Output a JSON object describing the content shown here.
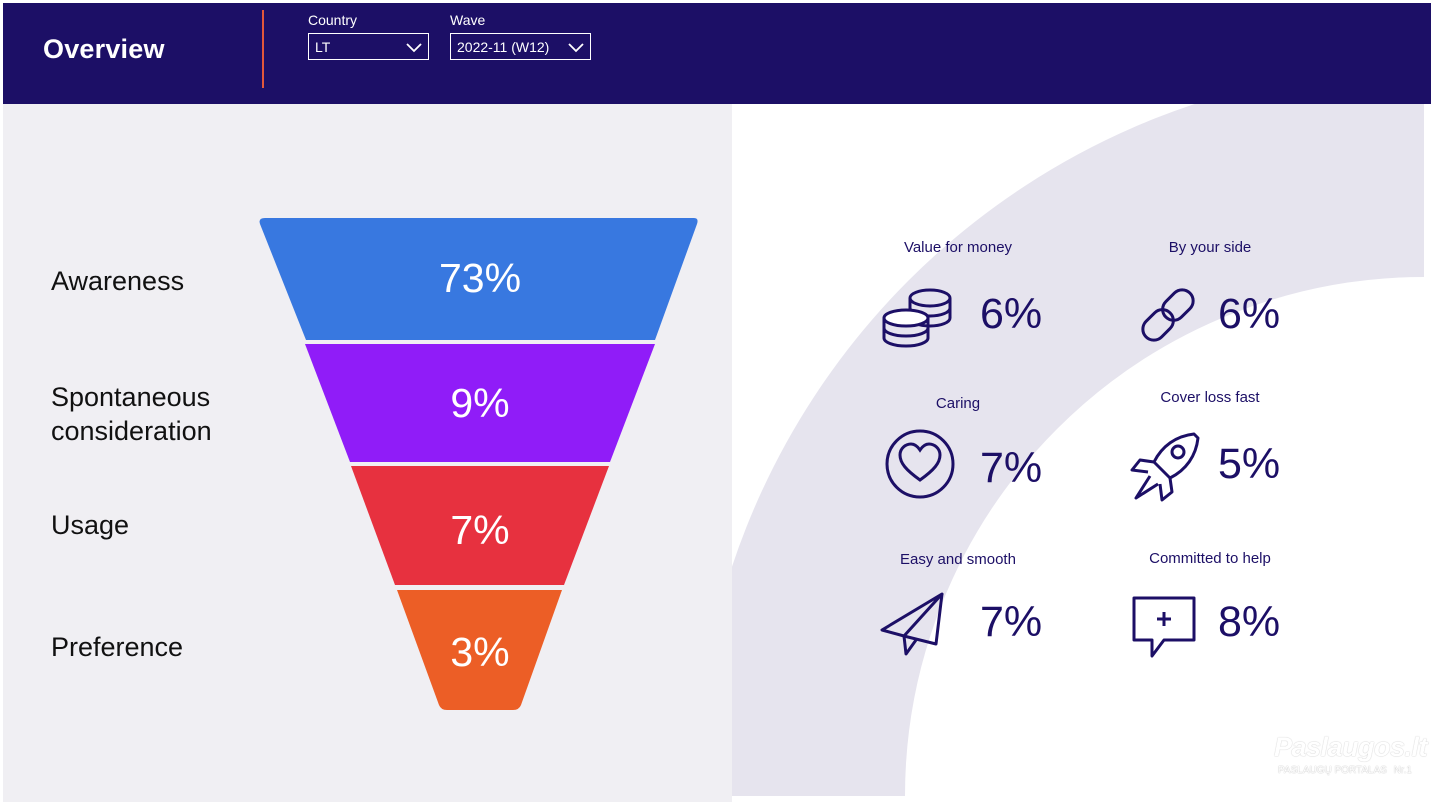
{
  "header": {
    "title": "Overview",
    "country": {
      "label": "Country",
      "value": "LT"
    },
    "wave": {
      "label": "Wave",
      "value": "2022-11 (W12)"
    }
  },
  "funnel": {
    "stages": [
      {
        "label": "Awareness",
        "value": "73%",
        "color": "#3878e0"
      },
      {
        "label": "Spontaneous consideration",
        "value": "9%",
        "color": "#901cf8"
      },
      {
        "label": "Usage",
        "value": "7%",
        "color": "#e7313f"
      },
      {
        "label": "Preference",
        "value": "3%",
        "color": "#ec5e26"
      }
    ]
  },
  "attributes": [
    {
      "label": "Value for money",
      "value": "6%",
      "icon": "coins-icon"
    },
    {
      "label": "By your side",
      "value": "6%",
      "icon": "link-icon"
    },
    {
      "label": "Caring",
      "value": "7%",
      "icon": "heart-icon"
    },
    {
      "label": "Cover loss fast",
      "value": "5%",
      "icon": "rocket-icon"
    },
    {
      "label": "Easy and smooth",
      "value": "7%",
      "icon": "paper-plane-icon"
    },
    {
      "label": "Committed to help",
      "value": "8%",
      "icon": "chat-plus-icon"
    }
  ],
  "watermark": {
    "title": "Paslaugos.lt",
    "subtitle": "PASLAUGŲ PORTALAS",
    "badge": "Nr.1"
  },
  "colors": {
    "header": "#1c0f66",
    "accent": "#e2573b",
    "panel": "#f0eff3",
    "arc": "#e6e4ee"
  }
}
